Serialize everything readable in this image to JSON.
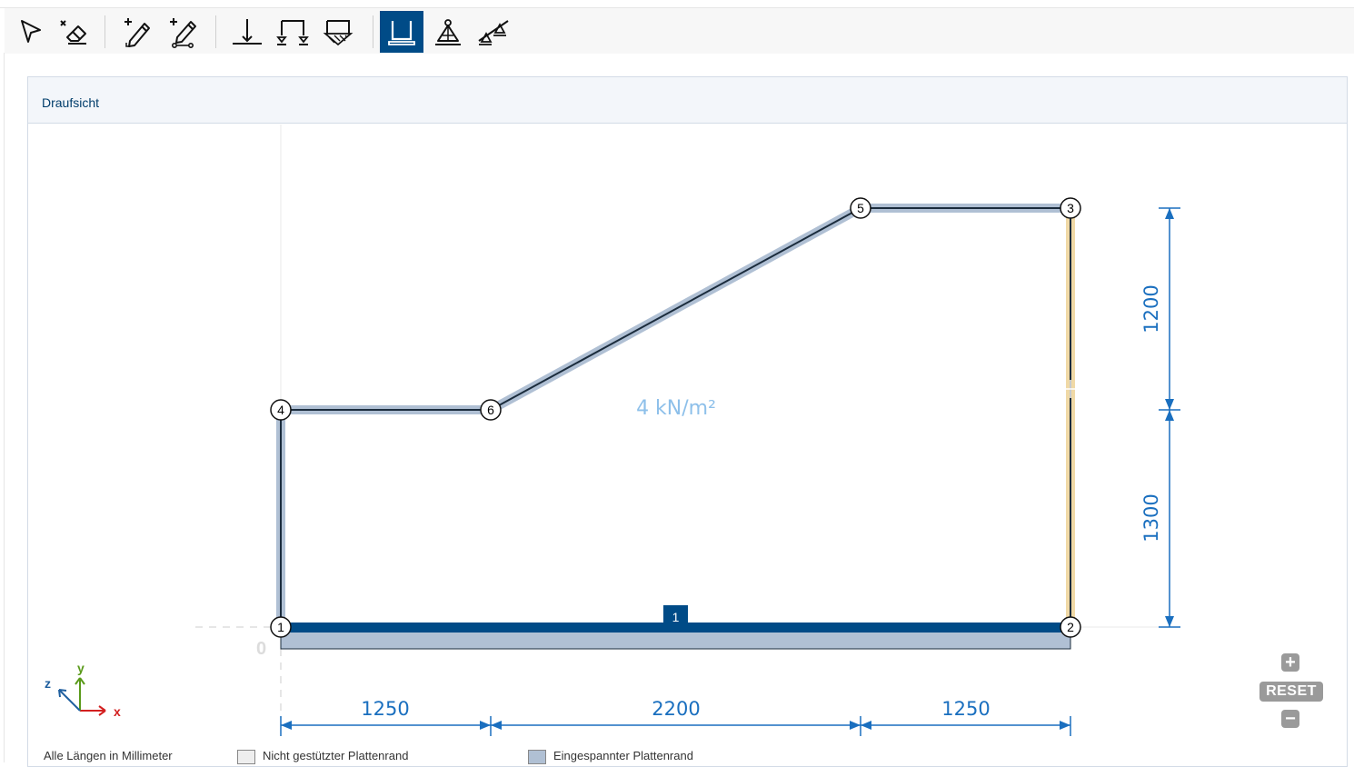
{
  "toolbar": {
    "tools": [
      {
        "id": "select",
        "icon": "select-arrow-icon"
      },
      {
        "id": "delete",
        "icon": "eraser-icon"
      },
      {
        "id": "add-edge",
        "icon": "pencil-add-icon"
      },
      {
        "id": "add-node",
        "icon": "pencil-node-icon"
      },
      {
        "id": "line-support",
        "icon": "line-support-icon"
      },
      {
        "id": "hinge-support",
        "icon": "hinge-support-icon"
      },
      {
        "id": "fixed-support",
        "icon": "fixed-support-icon"
      },
      {
        "id": "slab-edge",
        "icon": "slab-edge-icon",
        "active": true
      },
      {
        "id": "point-support",
        "icon": "point-support-icon"
      },
      {
        "id": "beam-support",
        "icon": "beam-support-icon"
      }
    ]
  },
  "panel": {
    "title": "Draufsicht"
  },
  "drawing": {
    "load_label": "4 kN/m²",
    "origin_label": "0",
    "member_label": "1",
    "nodes": [
      "1",
      "2",
      "3",
      "4",
      "5",
      "6"
    ],
    "dim_horizontal": [
      "1250",
      "2200",
      "1250"
    ],
    "dim_vertical": [
      "1200",
      "1300"
    ],
    "axis_labels": {
      "x": "x",
      "y": "y",
      "z": "z"
    }
  },
  "zoom": {
    "plus": "+",
    "reset": "RESET",
    "minus": "−"
  },
  "legend": {
    "text1": "Alle Längen in Millimeter",
    "text2": "Nicht gestützter Plattenrand",
    "text3": "Eingespannter Plattenrand"
  },
  "colors": {
    "accent": "#004b87",
    "dimension": "#1a6fbf",
    "load_text": "#8ec0ea",
    "edge_fill": "#b0c0d4",
    "free_edge": "#f0d9a6"
  }
}
